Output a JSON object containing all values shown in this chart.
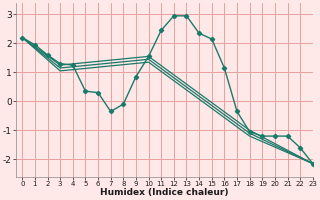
{
  "bg_color": "#ffe8e8",
  "grid_color": "#e8a0a0",
  "line_color": "#1a7a6a",
  "xlabel": "Humidex (Indice chaleur)",
  "xlim": [
    -0.5,
    23
  ],
  "ylim": [
    -2.6,
    3.4
  ],
  "yticks": [
    -2,
    -1,
    0,
    1,
    2,
    3
  ],
  "xticks": [
    0,
    1,
    2,
    3,
    4,
    5,
    6,
    7,
    8,
    9,
    10,
    11,
    12,
    13,
    14,
    15,
    16,
    17,
    18,
    19,
    20,
    21,
    22,
    23
  ],
  "series_main": {
    "x": [
      0,
      1,
      2,
      3,
      4,
      5,
      6,
      7,
      8,
      9,
      10,
      11,
      12,
      13,
      14,
      15,
      16,
      17,
      18,
      19,
      20,
      21,
      22,
      23
    ],
    "y": [
      2.2,
      1.95,
      1.6,
      1.3,
      1.25,
      0.35,
      0.3,
      -0.35,
      -0.1,
      0.85,
      1.55,
      2.45,
      2.95,
      2.95,
      2.35,
      2.15,
      1.15,
      -0.35,
      -1.05,
      -1.2,
      -1.2,
      -1.2,
      -1.6,
      -2.15
    ]
  },
  "series_lines": [
    {
      "x": [
        0,
        3,
        10,
        18,
        23
      ],
      "y": [
        2.2,
        1.25,
        1.55,
        -1.0,
        -2.15
      ]
    },
    {
      "x": [
        0,
        3,
        10,
        18,
        23
      ],
      "y": [
        2.2,
        1.15,
        1.45,
        -1.1,
        -2.15
      ]
    },
    {
      "x": [
        0,
        3,
        10,
        18,
        23
      ],
      "y": [
        2.2,
        1.05,
        1.35,
        -1.2,
        -2.15
      ]
    }
  ],
  "ytick_fontsize": 6.5,
  "xtick_fontsize": 5.0,
  "xlabel_fontsize": 6.5
}
